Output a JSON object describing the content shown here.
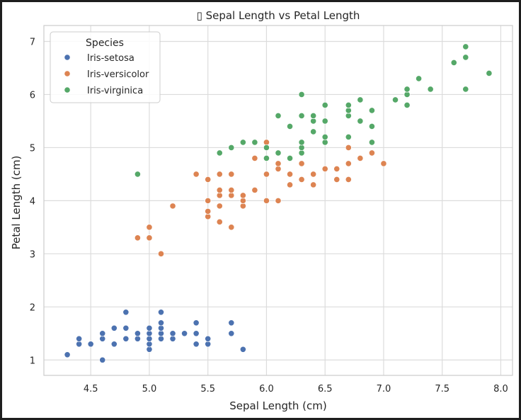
{
  "chart_data": {
    "type": "scatter",
    "title": "▯ Sepal Length vs Petal Length",
    "xlabel": "Sepal Length (cm)",
    "ylabel": "Petal Length (cm)",
    "xlim": [
      4.1,
      8.1
    ],
    "ylim": [
      0.71,
      7.3
    ],
    "xticks": [
      4.5,
      5.0,
      5.5,
      6.0,
      6.5,
      7.0,
      7.5,
      8.0
    ],
    "xtick_labels": [
      "4.5",
      "5.0",
      "5.5",
      "6.0",
      "6.5",
      "7.0",
      "7.5",
      "8.0"
    ],
    "yticks": [
      1,
      2,
      3,
      4,
      5,
      6,
      7
    ],
    "ytick_labels": [
      "1",
      "2",
      "3",
      "4",
      "5",
      "6",
      "7"
    ],
    "grid": true,
    "legend": {
      "title": "Species",
      "placement": "upper-left"
    },
    "series": [
      {
        "name": "Iris-setosa",
        "color": "#4c72b0",
        "points": [
          [
            4.3,
            1.1
          ],
          [
            4.4,
            1.3
          ],
          [
            4.4,
            1.4
          ],
          [
            4.5,
            1.3
          ],
          [
            4.6,
            1.0
          ],
          [
            4.6,
            1.4
          ],
          [
            4.6,
            1.5
          ],
          [
            4.7,
            1.3
          ],
          [
            4.7,
            1.6
          ],
          [
            4.8,
            1.4
          ],
          [
            4.8,
            1.6
          ],
          [
            4.8,
            1.9
          ],
          [
            4.9,
            1.4
          ],
          [
            4.9,
            1.5
          ],
          [
            5.0,
            1.2
          ],
          [
            5.0,
            1.3
          ],
          [
            5.0,
            1.4
          ],
          [
            5.0,
            1.5
          ],
          [
            5.0,
            1.6
          ],
          [
            5.1,
            1.4
          ],
          [
            5.1,
            1.5
          ],
          [
            5.1,
            1.6
          ],
          [
            5.1,
            1.7
          ],
          [
            5.1,
            1.9
          ],
          [
            5.2,
            1.4
          ],
          [
            5.2,
            1.5
          ],
          [
            5.3,
            1.5
          ],
          [
            5.4,
            1.3
          ],
          [
            5.4,
            1.5
          ],
          [
            5.4,
            1.7
          ],
          [
            5.5,
            1.3
          ],
          [
            5.5,
            1.4
          ],
          [
            5.7,
            1.5
          ],
          [
            5.7,
            1.7
          ],
          [
            5.8,
            1.2
          ]
        ]
      },
      {
        "name": "Iris-versicolor",
        "color": "#dd8452",
        "points": [
          [
            4.9,
            3.3
          ],
          [
            5.0,
            3.3
          ],
          [
            5.0,
            3.5
          ],
          [
            5.1,
            3.0
          ],
          [
            5.2,
            3.9
          ],
          [
            5.4,
            4.5
          ],
          [
            5.5,
            3.7
          ],
          [
            5.5,
            3.8
          ],
          [
            5.5,
            4.0
          ],
          [
            5.5,
            4.4
          ],
          [
            5.6,
            3.6
          ],
          [
            5.6,
            3.9
          ],
          [
            5.6,
            4.1
          ],
          [
            5.6,
            4.2
          ],
          [
            5.6,
            4.5
          ],
          [
            5.7,
            3.5
          ],
          [
            5.7,
            4.1
          ],
          [
            5.7,
            4.2
          ],
          [
            5.7,
            4.5
          ],
          [
            5.8,
            3.9
          ],
          [
            5.8,
            4.0
          ],
          [
            5.8,
            4.1
          ],
          [
            5.9,
            4.2
          ],
          [
            5.9,
            4.8
          ],
          [
            6.0,
            4.0
          ],
          [
            6.0,
            4.5
          ],
          [
            6.0,
            5.1
          ],
          [
            6.1,
            4.0
          ],
          [
            6.1,
            4.6
          ],
          [
            6.1,
            4.7
          ],
          [
            6.2,
            4.3
          ],
          [
            6.2,
            4.5
          ],
          [
            6.3,
            4.4
          ],
          [
            6.3,
            4.7
          ],
          [
            6.4,
            4.3
          ],
          [
            6.4,
            4.5
          ],
          [
            6.5,
            4.6
          ],
          [
            6.6,
            4.4
          ],
          [
            6.6,
            4.6
          ],
          [
            6.7,
            4.4
          ],
          [
            6.7,
            4.7
          ],
          [
            6.7,
            5.0
          ],
          [
            6.8,
            4.8
          ],
          [
            6.9,
            4.9
          ],
          [
            7.0,
            4.7
          ]
        ]
      },
      {
        "name": "Iris-virginica",
        "color": "#55a868",
        "points": [
          [
            4.9,
            4.5
          ],
          [
            5.6,
            4.9
          ],
          [
            5.7,
            5.0
          ],
          [
            5.8,
            5.1
          ],
          [
            5.9,
            5.1
          ],
          [
            6.0,
            4.8
          ],
          [
            6.0,
            5.0
          ],
          [
            6.1,
            4.9
          ],
          [
            6.1,
            5.6
          ],
          [
            6.2,
            4.8
          ],
          [
            6.2,
            5.4
          ],
          [
            6.3,
            4.9
          ],
          [
            6.3,
            5.0
          ],
          [
            6.3,
            5.1
          ],
          [
            6.3,
            5.6
          ],
          [
            6.3,
            6.0
          ],
          [
            6.4,
            5.3
          ],
          [
            6.4,
            5.5
          ],
          [
            6.4,
            5.6
          ],
          [
            6.5,
            5.1
          ],
          [
            6.5,
            5.2
          ],
          [
            6.5,
            5.5
          ],
          [
            6.5,
            5.8
          ],
          [
            6.7,
            5.2
          ],
          [
            6.7,
            5.6
          ],
          [
            6.7,
            5.7
          ],
          [
            6.7,
            5.8
          ],
          [
            6.8,
            5.5
          ],
          [
            6.8,
            5.9
          ],
          [
            6.9,
            5.1
          ],
          [
            6.9,
            5.4
          ],
          [
            6.9,
            5.7
          ],
          [
            7.1,
            5.9
          ],
          [
            7.2,
            5.8
          ],
          [
            7.2,
            6.0
          ],
          [
            7.2,
            6.1
          ],
          [
            7.3,
            6.3
          ],
          [
            7.4,
            6.1
          ],
          [
            7.6,
            6.6
          ],
          [
            7.7,
            6.1
          ],
          [
            7.7,
            6.7
          ],
          [
            7.7,
            6.9
          ],
          [
            7.9,
            6.4
          ]
        ]
      }
    ]
  }
}
